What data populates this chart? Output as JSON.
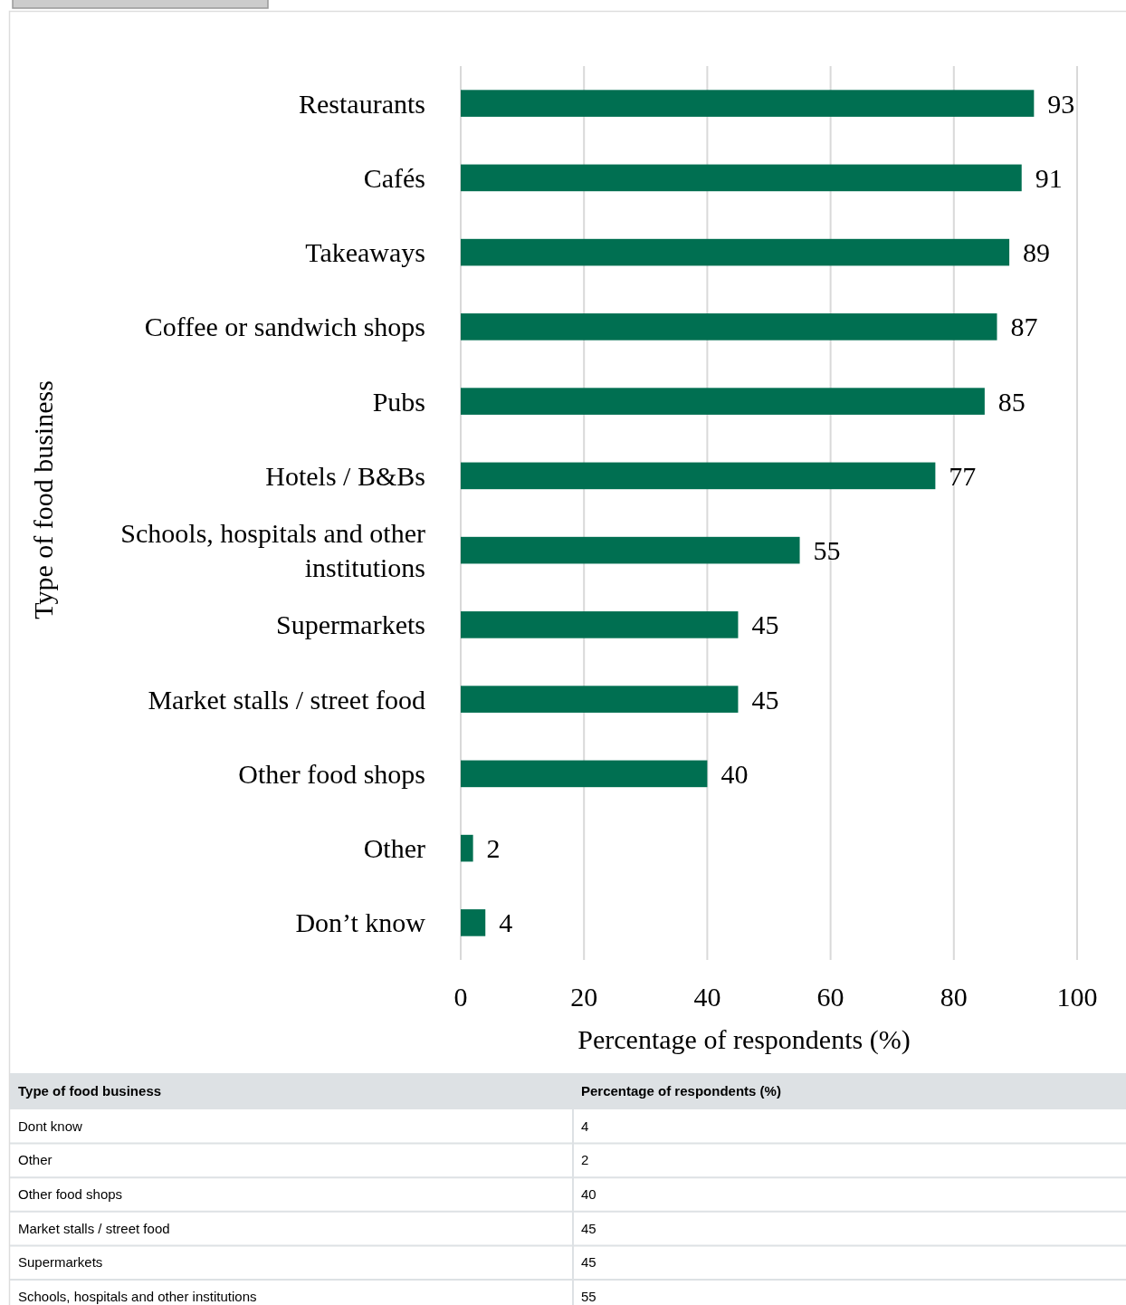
{
  "chart_data": {
    "type": "bar",
    "orientation": "horizontal",
    "categories": [
      "Restaurants",
      "Cafés",
      "Takeaways",
      "Coffee or sandwich shops",
      "Pubs",
      "Hotels / B&Bs",
      "Schools, hospitals and other institutions",
      "Supermarkets",
      "Market stalls / street food",
      "Other food shops",
      "Other",
      "Don’t know"
    ],
    "values": [
      93,
      91,
      89,
      87,
      85,
      77,
      55,
      45,
      45,
      40,
      2,
      4
    ],
    "color": "#006f51",
    "xlim": [
      0,
      100
    ],
    "xticks": [
      0,
      20,
      40,
      60,
      80,
      100
    ],
    "xlabel": "Percentage of respondents (%)",
    "ylabel": "Type of food business",
    "grid": "x",
    "data_labels": true,
    "annotations": [
      "Type of food business",
      "Percentage of respondents (%)",
      "Dont know",
      "4",
      "Other",
      "2",
      "Other food shops",
      "40",
      "Market stalls / street food",
      "45",
      "Supermarkets",
      "45",
      "Schools, hospitals and other institutions",
      "55"
    ]
  }
}
